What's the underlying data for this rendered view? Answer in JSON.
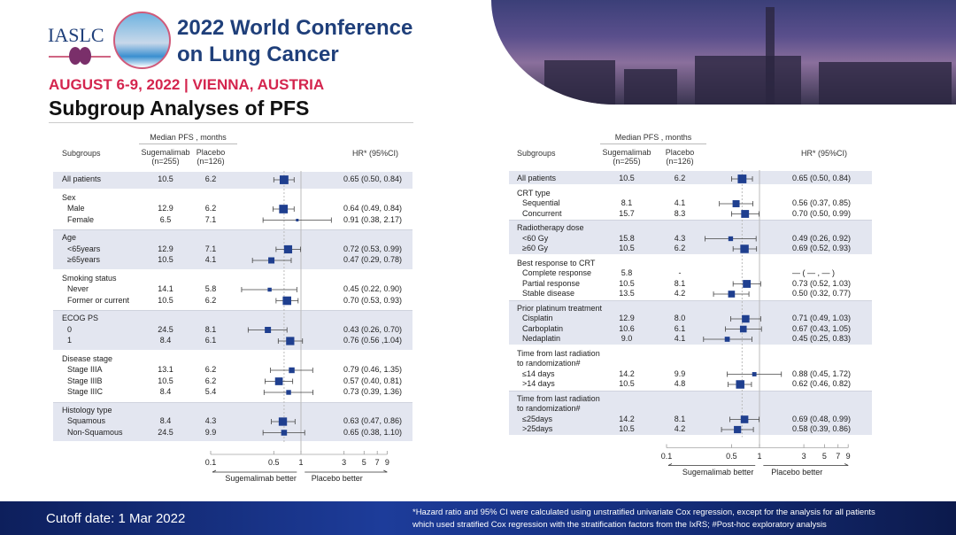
{
  "header": {
    "org": "IASLC",
    "conference_line1": "2022 World Conference",
    "conference_line2": "on Lung Cancer",
    "dates_location": "AUGUST 6-9, 2022 | VIENNA, AUSTRIA",
    "slide_title": "Subgroup Analyses of PFS"
  },
  "footer": {
    "cutoff": "Cutoff date: 1 Mar 2022",
    "footnote_line1": "*Hazard ratio and 95% CI were calculated using unstratified univariate Cox regression, except for the analysis for all patients",
    "footnote_line2": "which used stratified Cox regression with the stratification factors from the IxRS; #Post-hoc exploratory analysis"
  },
  "colors": {
    "marker": "#1f3f8f",
    "band": "#e3e6f0",
    "title_blue": "#1f3f7a",
    "date_red": "#d4254e"
  },
  "chart_data": [
    {
      "type": "forest",
      "x_scale": "log",
      "xlim": [
        0.1,
        9
      ],
      "reference_line": 1,
      "overall_hr_line": 0.65,
      "ticks": [
        "0.1",
        "0.5",
        "1",
        "3",
        "5",
        "7",
        "9"
      ],
      "left_label": "Sugemalimab better",
      "right_label": "Placebo  better",
      "headers": {
        "median": "Median PFS , months",
        "subgroups": "Subgroups",
        "arm1": "Sugemalimab",
        "arm1_n": "(n=255)",
        "arm2": "Placebo",
        "arm2_n": "(n=126)",
        "hr": "HR* (95%CI)"
      },
      "groups": [
        {
          "title": [],
          "shaded": true,
          "rows": [
            {
              "label": "All patients",
              "sug": "10.5",
              "pla": "6.2",
              "hr": 0.65,
              "lo": 0.5,
              "hi": 0.84,
              "hr_text": "0.65 (0.50, 0.84)"
            }
          ]
        },
        {
          "title": [
            "Sex"
          ],
          "shaded": false,
          "rows": [
            {
              "label": "Male",
              "sug": "12.9",
              "pla": "6.2",
              "hr": 0.64,
              "lo": 0.49,
              "hi": 0.84,
              "hr_text": "0.64 (0.49, 0.84)"
            },
            {
              "label": "Female",
              "sug": "6.5",
              "pla": "7.1",
              "hr": 0.91,
              "lo": 0.38,
              "hi": 2.17,
              "hr_text": "0.91 (0.38, 2.17)"
            }
          ]
        },
        {
          "title": [
            "Age"
          ],
          "shaded": true,
          "rows": [
            {
              "label": "<65years",
              "sug": "12.9",
              "pla": "7.1",
              "hr": 0.72,
              "lo": 0.53,
              "hi": 0.99,
              "hr_text": "0.72 (0.53, 0.99)"
            },
            {
              "label": "≥65years",
              "sug": "10.5",
              "pla": "4.1",
              "hr": 0.47,
              "lo": 0.29,
              "hi": 0.78,
              "hr_text": "0.47 (0.29, 0.78)"
            }
          ]
        },
        {
          "title": [
            "Smoking status"
          ],
          "shaded": false,
          "rows": [
            {
              "label": "Never",
              "sug": "14.1",
              "pla": "5.8",
              "hr": 0.45,
              "lo": 0.22,
              "hi": 0.9,
              "hr_text": "0.45 (0.22, 0.90)"
            },
            {
              "label": "Former or current",
              "sug": "10.5",
              "pla": "6.2",
              "hr": 0.7,
              "lo": 0.53,
              "hi": 0.93,
              "hr_text": "0.70 (0.53, 0.93)"
            }
          ]
        },
        {
          "title": [
            "ECOG PS"
          ],
          "shaded": true,
          "rows": [
            {
              "label": "0",
              "sug": "24.5",
              "pla": "8.1",
              "hr": 0.43,
              "lo": 0.26,
              "hi": 0.7,
              "hr_text": "0.43 (0.26, 0.70)"
            },
            {
              "label": "1",
              "sug": "8.4",
              "pla": "6.1",
              "hr": 0.76,
              "lo": 0.56,
              "hi": 1.04,
              "hr_text": "0.76 (0.56 ,1.04)"
            }
          ]
        },
        {
          "title": [
            "Disease stage"
          ],
          "shaded": false,
          "rows": [
            {
              "label": "Stage IIIA",
              "sug": "13.1",
              "pla": "6.2",
              "hr": 0.79,
              "lo": 0.46,
              "hi": 1.35,
              "hr_text": "0.79 (0.46, 1.35)"
            },
            {
              "label": "Stage IIIB",
              "sug": "10.5",
              "pla": "6.2",
              "hr": 0.57,
              "lo": 0.4,
              "hi": 0.81,
              "hr_text": "0.57 (0.40, 0.81)"
            },
            {
              "label": "Stage IIIC",
              "sug": "8.4",
              "pla": "5.4",
              "hr": 0.73,
              "lo": 0.39,
              "hi": 1.36,
              "hr_text": "0.73 (0.39, 1.36)"
            }
          ]
        },
        {
          "title": [
            "Histology type"
          ],
          "shaded": true,
          "rows": [
            {
              "label": "Squamous",
              "sug": "8.4",
              "pla": "4.3",
              "hr": 0.63,
              "lo": 0.47,
              "hi": 0.86,
              "hr_text": "0.63 (0.47, 0.86)"
            },
            {
              "label": "Non-Squamous",
              "sug": "24.5",
              "pla": "9.9",
              "hr": 0.65,
              "lo": 0.38,
              "hi": 1.1,
              "hr_text": "0.65 (0.38, 1.10)"
            }
          ]
        }
      ]
    },
    {
      "type": "forest",
      "x_scale": "log",
      "xlim": [
        0.1,
        9
      ],
      "reference_line": 1,
      "overall_hr_line": 0.65,
      "ticks": [
        "0.1",
        "0.5",
        "1",
        "3",
        "5",
        "7",
        "9"
      ],
      "left_label": "Sugemalimab better",
      "right_label": "Placebo  better",
      "headers": {
        "median": "Median PFS , months",
        "subgroups": "Subgroups",
        "arm1": "Sugemalimab",
        "arm1_n": "(n=255)",
        "arm2": "Placebo",
        "arm2_n": "(n=126)",
        "hr": "HR* (95%CI)"
      },
      "groups": [
        {
          "title": [],
          "shaded": true,
          "rows": [
            {
              "label": "All patients",
              "sug": "10.5",
              "pla": "6.2",
              "hr": 0.65,
              "lo": 0.5,
              "hi": 0.84,
              "hr_text": "0.65 (0.50, 0.84)"
            }
          ]
        },
        {
          "title": [
            "CRT type"
          ],
          "shaded": false,
          "rows": [
            {
              "label": "Sequential",
              "sug": "8.1",
              "pla": "4.1",
              "hr": 0.56,
              "lo": 0.37,
              "hi": 0.85,
              "hr_text": "0.56 (0.37, 0.85)"
            },
            {
              "label": "Concurrent",
              "sug": "15.7",
              "pla": "8.3",
              "hr": 0.7,
              "lo": 0.5,
              "hi": 0.99,
              "hr_text": "0.70 (0.50, 0.99)"
            }
          ]
        },
        {
          "title": [
            "Radiotherapy dose"
          ],
          "shaded": true,
          "rows": [
            {
              "label": "<60 Gy",
              "sug": "15.8",
              "pla": "4.3",
              "hr": 0.49,
              "lo": 0.26,
              "hi": 0.92,
              "hr_text": "0.49 (0.26, 0.92)"
            },
            {
              "label": "≥60 Gy",
              "sug": "10.5",
              "pla": "6.2",
              "hr": 0.69,
              "lo": 0.52,
              "hi": 0.93,
              "hr_text": "0.69 (0.52, 0.93)"
            }
          ]
        },
        {
          "title": [
            "Best response to CRT"
          ],
          "shaded": false,
          "rows": [
            {
              "label": "Complete response",
              "sug": "5.8",
              "pla": "-",
              "hr": null,
              "lo": null,
              "hi": null,
              "hr_text": "— ( — , — )"
            },
            {
              "label": "Partial response",
              "sug": "10.5",
              "pla": "8.1",
              "hr": 0.73,
              "lo": 0.52,
              "hi": 1.03,
              "hr_text": "0.73 (0.52, 1.03)"
            },
            {
              "label": "Stable disease",
              "sug": "13.5",
              "pla": "4.2",
              "hr": 0.5,
              "lo": 0.32,
              "hi": 0.77,
              "hr_text": "0.50 (0.32, 0.77)"
            }
          ]
        },
        {
          "title": [
            "Prior platinum treatment"
          ],
          "shaded": true,
          "rows": [
            {
              "label": "Cisplatin",
              "sug": "12.9",
              "pla": "8.0",
              "hr": 0.71,
              "lo": 0.49,
              "hi": 1.03,
              "hr_text": "0.71 (0.49, 1.03)"
            },
            {
              "label": "Carboplatin",
              "sug": "10.6",
              "pla": "6.1",
              "hr": 0.67,
              "lo": 0.43,
              "hi": 1.05,
              "hr_text": "0.67 (0.43, 1.05)"
            },
            {
              "label": "Nedaplatin",
              "sug": "9.0",
              "pla": "4.1",
              "hr": 0.45,
              "lo": 0.25,
              "hi": 0.83,
              "hr_text": "0.45 (0.25, 0.83)"
            }
          ]
        },
        {
          "title": [
            "Time from last radiation",
            "to randomization#"
          ],
          "shaded": false,
          "rows": [
            {
              "label": "≤14 days",
              "sug": "14.2",
              "pla": "9.9",
              "hr": 0.88,
              "lo": 0.45,
              "hi": 1.72,
              "hr_text": "0.88 (0.45, 1.72)"
            },
            {
              "label": ">14 days",
              "sug": "10.5",
              "pla": "4.8",
              "hr": 0.62,
              "lo": 0.46,
              "hi": 0.82,
              "hr_text": "0.62 (0.46, 0.82)"
            }
          ]
        },
        {
          "title": [
            "Time from last radiation",
            "to randomization#"
          ],
          "shaded": true,
          "rows": [
            {
              "label": "≤25days",
              "sug": "14.2",
              "pla": "8.1",
              "hr": 0.69,
              "lo": 0.48,
              "hi": 0.99,
              "hr_text": "0.69 (0.48, 0.99)"
            },
            {
              "label": ">25days",
              "sug": "10.5",
              "pla": "4.2",
              "hr": 0.58,
              "lo": 0.39,
              "hi": 0.86,
              "hr_text": "0.58 (0.39, 0.86)"
            }
          ]
        }
      ]
    }
  ]
}
